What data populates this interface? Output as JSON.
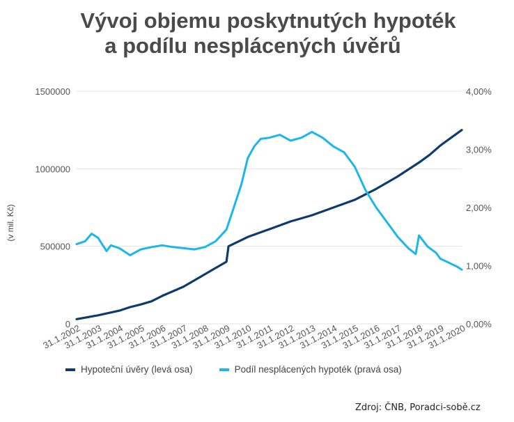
{
  "chart_data": {
    "type": "line",
    "title": "Vývoj objemu poskytnutých hypoték",
    "subtitle": "a podílu nesplácených úvěrů",
    "ylabel": "(v mil. Kč)",
    "ylim": [
      0,
      1500000
    ],
    "y2lim": [
      0,
      4
    ],
    "y_ticks": [
      "1500000",
      "1000000",
      "500000",
      "0"
    ],
    "y2_ticks": [
      "4,00%",
      "3,00%",
      "2,00%",
      "1,00%",
      "0,00%"
    ],
    "categories": [
      "31.1.2002",
      "31.1.2003",
      "31.1.2004",
      "31.1.2005",
      "31.1.2006",
      "31.1.2007",
      "31.1.2008",
      "31.1.2009",
      "31.1.2010",
      "31.1.2011",
      "31.1.2012",
      "31.1.2013",
      "31.1.2014",
      "31.1.2015",
      "31.1.2016",
      "31.1.2017",
      "31.1.2018",
      "31.1.2019",
      "31.1.2020"
    ],
    "series": [
      {
        "name": "Hypoteční úvěry (levá osa)",
        "color": "#0d3b6e",
        "axis": "left",
        "x": [
          2002.0,
          2003.0,
          2004.0,
          2004.5,
          2005.0,
          2005.5,
          2006.0,
          2007.0,
          2008.0,
          2008.5,
          2009.0,
          2009.1,
          2010.0,
          2011.0,
          2012.0,
          2013.0,
          2014.0,
          2015.0,
          2015.5,
          2016.0,
          2017.0,
          2018.0,
          2018.5,
          2019.0,
          2019.5,
          2020.0
        ],
        "values": [
          30000,
          55000,
          85000,
          108000,
          125000,
          145000,
          180000,
          240000,
          320000,
          360000,
          400000,
          500000,
          560000,
          610000,
          660000,
          700000,
          750000,
          800000,
          835000,
          870000,
          950000,
          1040000,
          1090000,
          1150000,
          1200000,
          1250000
        ]
      },
      {
        "name": "Podíl nesplácených hypoték (pravá osa)",
        "color": "#1ab6ec",
        "axis": "right",
        "x": [
          2002.0,
          2002.4,
          2002.7,
          2003.0,
          2003.4,
          2003.6,
          2004.0,
          2004.5,
          2005.0,
          2005.5,
          2006.0,
          2006.5,
          2007.0,
          2007.5,
          2008.0,
          2008.5,
          2009.0,
          2009.3,
          2009.7,
          2010.0,
          2010.3,
          2010.6,
          2011.0,
          2011.5,
          2012.0,
          2012.5,
          2013.0,
          2013.5,
          2014.0,
          2014.5,
          2015.0,
          2015.5,
          2016.0,
          2016.5,
          2017.0,
          2017.5,
          2017.85,
          2018.0,
          2018.4,
          2018.8,
          2019.0,
          2019.4,
          2019.8,
          2020.0
        ],
        "values": [
          1.37,
          1.42,
          1.55,
          1.48,
          1.25,
          1.35,
          1.3,
          1.18,
          1.28,
          1.32,
          1.35,
          1.32,
          1.3,
          1.28,
          1.32,
          1.42,
          1.62,
          1.95,
          2.4,
          2.85,
          3.05,
          3.18,
          3.2,
          3.25,
          3.15,
          3.2,
          3.3,
          3.2,
          3.05,
          2.95,
          2.7,
          2.3,
          2.0,
          1.75,
          1.5,
          1.3,
          1.2,
          1.52,
          1.33,
          1.22,
          1.12,
          1.05,
          0.98,
          0.93
        ]
      }
    ],
    "legend_position": "bottom",
    "grid": true,
    "source": "Zdroj: ČNB, Poradci-sobě.cz"
  }
}
